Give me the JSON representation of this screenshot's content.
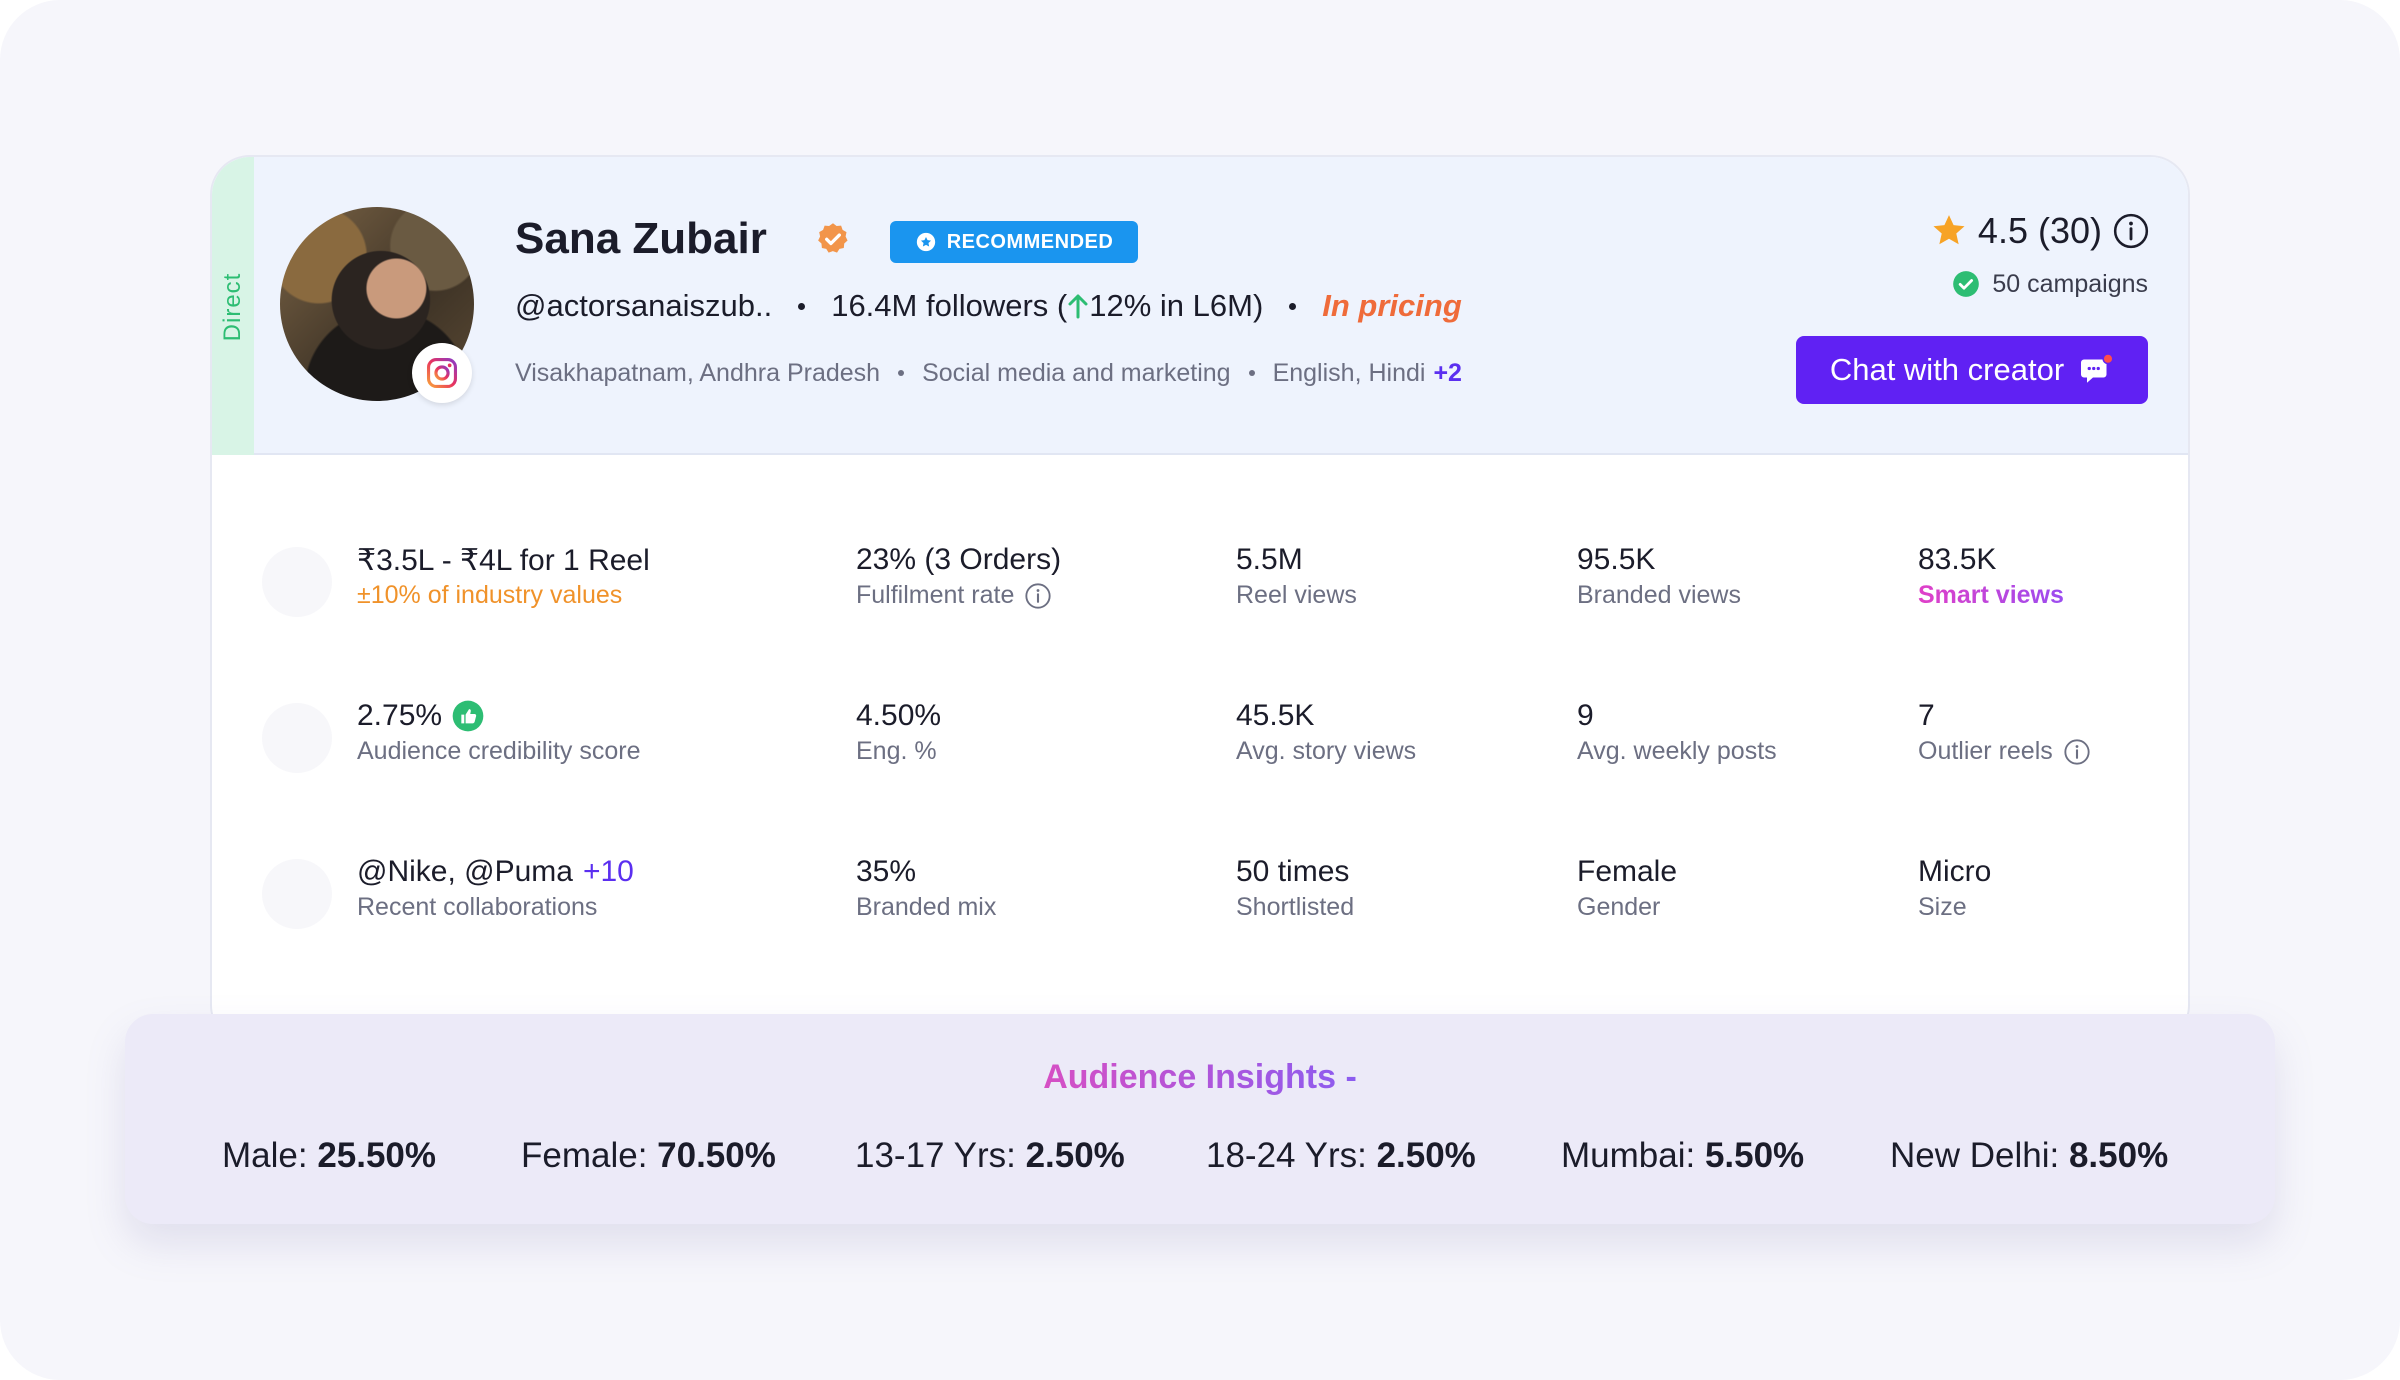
{
  "profile": {
    "direct_label": "Direct",
    "name": "Sana Zubair",
    "recommended_label": "RECOMMENDED",
    "handle": "@actorsanaiszub..",
    "followers": "16.4M followers (",
    "growth": "12% in L6M)",
    "status": "In pricing",
    "location": "Visakhapatnam, Andhra Pradesh",
    "category": "Social media and marketing",
    "languages": "English, Hindi",
    "languages_more": "+2",
    "rating": "4.5 (30)",
    "campaigns": "50 campaigns",
    "chat_button": "Chat with creator"
  },
  "stats": {
    "row1": [
      {
        "value": "₹3.5L - ₹4L for 1 Reel",
        "label": "±10% of industry values"
      },
      {
        "value": "23% (3 Orders)",
        "label": "Fulfilment rate"
      },
      {
        "value": "5.5M",
        "label": "Reel views"
      },
      {
        "value": "95.5K",
        "label": "Branded views"
      },
      {
        "value": "83.5K",
        "label": "Smart views"
      }
    ],
    "row2": [
      {
        "value": "2.75%",
        "label": "Audience credibility score"
      },
      {
        "value": "4.50%",
        "label": "Eng. %"
      },
      {
        "value": "45.5K",
        "label": "Avg. story views"
      },
      {
        "value": "9",
        "label": "Avg. weekly posts"
      },
      {
        "value": "7",
        "label": "Outlier reels"
      }
    ],
    "row3": [
      {
        "value": "@Nike, @Puma",
        "value_more": "+10",
        "label": "Recent collaborations"
      },
      {
        "value": "35%",
        "label": "Branded mix"
      },
      {
        "value": "50 times",
        "label": "Shortlisted"
      },
      {
        "value": "Female",
        "label": "Gender"
      },
      {
        "value": "Micro",
        "label": "Size"
      }
    ]
  },
  "insights": {
    "title": "Audience Insights -",
    "items": [
      {
        "label": "Male: ",
        "value": "25.50%"
      },
      {
        "label": "Female: ",
        "value": "70.50%"
      },
      {
        "label": "13-17 Yrs: ",
        "value": "2.50%"
      },
      {
        "label": "18-24 Yrs: ",
        "value": "2.50%"
      },
      {
        "label": "Mumbai: ",
        "value": "5.50%"
      },
      {
        "label": "New Delhi: ",
        "value": "8.50%"
      }
    ]
  },
  "colors": {
    "accent": "#6021f3",
    "recommended": "#1a95ef",
    "pricing": "#ef6b3a",
    "direct": "#2dbd73"
  },
  "icons": [
    "verified-badge-icon",
    "star-icon",
    "instagram-icon",
    "info-icon",
    "check-circle-icon",
    "chat-bubble-icon",
    "thumbs-up-icon",
    "arrow-up-icon"
  ]
}
